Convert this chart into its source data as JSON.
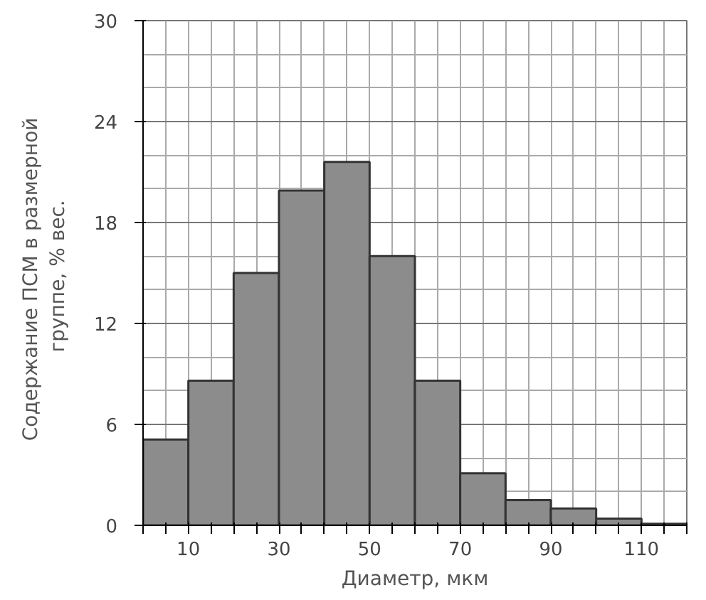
{
  "chart_data": {
    "type": "histogram",
    "xlabel": "Диаметр, мкм",
    "ylabel": "Содержание  ПСМ в  размерной\nгруппе,  % вес.",
    "bins": [
      0,
      10,
      20,
      30,
      40,
      50,
      60,
      70,
      80,
      90,
      100,
      110,
      120
    ],
    "values": [
      5.1,
      8.6,
      15.0,
      19.9,
      21.6,
      16.0,
      8.6,
      3.1,
      1.5,
      1.0,
      0.4,
      0.1
    ],
    "color": "#8c8c8c",
    "xlim": [
      0,
      120
    ],
    "ylim": [
      0,
      30
    ],
    "xticks": [
      {
        "value": 0,
        "label": null
      },
      {
        "value": 5,
        "label": null
      },
      10,
      {
        "value": 15,
        "label": null
      },
      {
        "value": 20,
        "label": null
      },
      {
        "value": 25,
        "label": null
      },
      30,
      {
        "value": 35,
        "label": null
      },
      {
        "value": 40,
        "label": null
      },
      {
        "value": 45,
        "label": null
      },
      50,
      {
        "value": 55,
        "label": null
      },
      {
        "value": 60,
        "label": null
      },
      {
        "value": 65,
        "label": null
      },
      70,
      {
        "value": 75,
        "label": null
      },
      {
        "value": 80,
        "label": null
      },
      {
        "value": 85,
        "label": null
      },
      90,
      {
        "value": 95,
        "label": null
      },
      {
        "value": 100,
        "label": null
      },
      {
        "value": 105,
        "label": null
      },
      110,
      {
        "value": 115,
        "label": null
      },
      {
        "value": 120,
        "label": null
      }
    ],
    "yticks": [
      0,
      6,
      12,
      18,
      24,
      30
    ],
    "grid": true
  }
}
